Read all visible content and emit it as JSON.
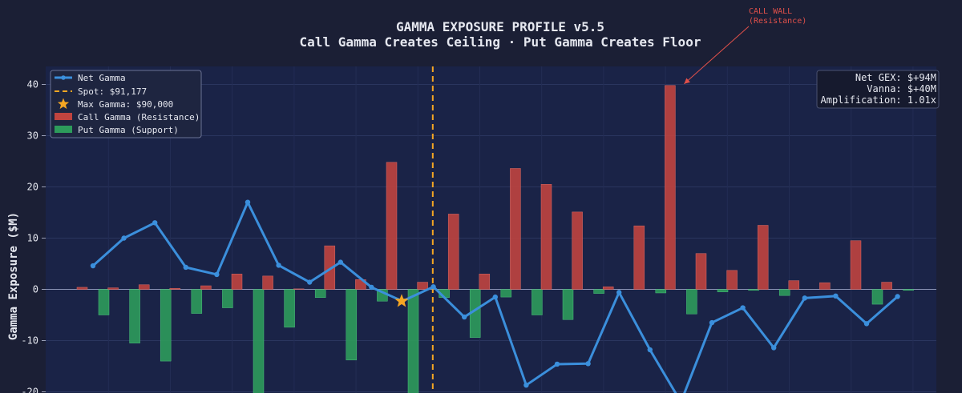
{
  "chart_data": {
    "type": "bar",
    "title": "GAMMA EXPOSURE PROFILE v5.5",
    "subtitle": "Call Gamma Creates Ceiling · Put Gamma Creates Floor",
    "xlabel": "",
    "ylabel": "Gamma Exposure ($M)",
    "ylim": [
      -20,
      44
    ],
    "yticks": [
      -20,
      -10,
      0,
      10,
      20,
      30,
      40
    ],
    "grid": true,
    "legend_position": "top-left",
    "colors": {
      "background": "#1b1f35",
      "plot_background": "#1a2347",
      "call": "#c0443f",
      "put": "#2d9b5b",
      "net": "#3b8fdc",
      "spot": "#f5a623",
      "star": "#f5a623",
      "annotation": "#e0504a"
    },
    "legend": [
      {
        "key": "net",
        "label": "Net Gamma"
      },
      {
        "key": "spot",
        "label": "Spot: $91,177"
      },
      {
        "key": "max",
        "label": "Max Gamma: $90,000"
      },
      {
        "key": "call",
        "label": "Call Gamma (Resistance)"
      },
      {
        "key": "put",
        "label": "Put Gamma (Support)"
      }
    ],
    "series": [
      {
        "name": "Call Gamma (Resistance)",
        "values": [
          0.4,
          0.3,
          0.9,
          0.2,
          0.7,
          3.0,
          2.6,
          0.1,
          8.5,
          1.9,
          24.8,
          1.4,
          14.7,
          3.0,
          23.6,
          20.5,
          15.1,
          0.5,
          12.4,
          39.8,
          7.0,
          3.7,
          12.5,
          1.7,
          1.3,
          9.5,
          1.4
        ]
      },
      {
        "name": "Put Gamma (Support)",
        "values": [
          -5.0,
          -10.5,
          -14.0,
          -4.7,
          -3.6,
          -20.5,
          -7.4,
          -1.6,
          -13.8,
          -2.3,
          -22.0,
          -1.6,
          -9.4,
          -1.5,
          -5.0,
          -5.9,
          -0.8,
          0,
          -0.7,
          -4.8,
          -0.5,
          -0.2,
          -1.2,
          0,
          0,
          -2.9,
          -0.2
        ]
      },
      {
        "name": "Net Gamma",
        "values": [
          4.6,
          10.0,
          13.0,
          4.3,
          2.9,
          17.0,
          4.7,
          1.4,
          5.3,
          0.4,
          -2.3,
          0.5,
          -5.4,
          -1.5,
          -18.7,
          -14.6,
          -14.5,
          -0.6,
          -11.8,
          -22.0,
          -6.5,
          -3.6,
          -11.4,
          -1.7,
          -1.3,
          -6.7,
          -1.4
        ]
      }
    ],
    "spot_index": 10.98,
    "max_gamma_point": {
      "index": 10,
      "value": -2.3
    },
    "stats": {
      "net_gex": "Net GEX: $+94M",
      "vanna": "Vanna: $+40M",
      "amplification": "Amplification: 1.01x"
    },
    "annotation": {
      "line1": "CALL WALL",
      "line2": "(Resistance)",
      "target_index": 19,
      "target_value": 39.8
    }
  }
}
